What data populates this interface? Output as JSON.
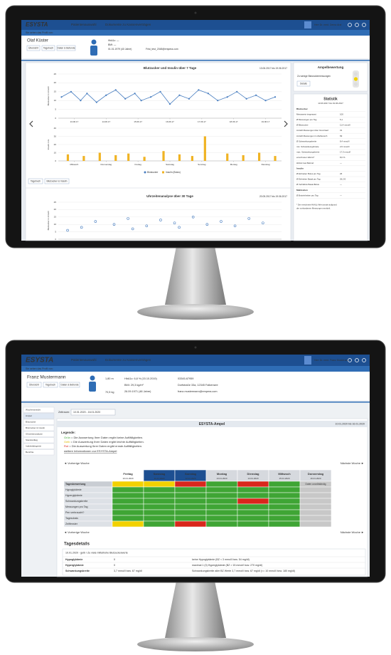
{
  "top_screen": {
    "header": {
      "logo": "ESYSTA",
      "nav": [
        "Patientenauswahl",
        "Dokumente zu Kassenverträgen"
      ],
      "user": "Herr Dr. med. Demo Arzt"
    },
    "profile_hint": "Sie sehen das Profil von:",
    "patient": {
      "name": "Olaf Küster",
      "tabs": [
        "Übersicht",
        "Tagebuch",
        "Daten & Befunde"
      ],
      "info": [
        "HbA1c: —",
        "BMI: —",
        "01.01.1979 (40 Jahre)",
        "Frist_test_2048@empera.com"
      ]
    },
    "buttons": [
      "Tagebuch",
      "Blutzucker & Insulin"
    ],
    "ampel": {
      "title": "Ampelbewertung",
      "text": "Zu wenige Blutzuckermessungen",
      "button": "Details"
    },
    "statistik": {
      "title": "Statistik",
      "period": "13.06.2017 bis 19.06.2017",
      "rows": [
        {
          "section": "Blutzucker"
        },
        {
          "label": "Messwerte insgesamt",
          "value": "100"
        },
        {
          "label": "Ø Messungen pro Tag",
          "value": "5,1"
        },
        {
          "label": "Ø Blutzucker",
          "value": "11,4 mmol/l"
        },
        {
          "label": "Anzahl Messungen über Grenzwert",
          "value": "31"
        },
        {
          "label": "Anzahl Messungen im Zielbereich",
          "value": "69"
        },
        {
          "label": "Ø Schwankungsbreite",
          "value": "8,4 mmol/l"
        },
        {
          "label": "min. Schwankungsbreite",
          "value": "2,5 mmol/l"
        },
        {
          "label": "max. Schwankungsbreite",
          "value": "17,3 mmol/l"
        },
        {
          "label": "errechneter HbA1c*",
          "value": "8,6 %"
        },
        {
          "label": "HbA1c laut Befund",
          "value": "—"
        },
        {
          "section": "Insulin"
        },
        {
          "label": "Ø Einheiten Bolus pro Tag",
          "value": "26"
        },
        {
          "label": "Ø Einheiten Basal pro Tag",
          "value": "26,2 E"
        },
        {
          "label": "Ø Verhältnis Basal-Bolus",
          "value": "—"
        },
        {
          "section": "Mahlzeiten"
        },
        {
          "label": "Ø Broteinheiten pro Tag",
          "value": "—"
        }
      ],
      "footnote": [
        "* Der errechnete HbA1c-Wert wurde aufgrund",
        "der vorhandenen Messungen ermittelt."
      ]
    }
  },
  "bottom_screen": {
    "header": {
      "logo": "ESYSTA",
      "nav": [
        "Patientenauswahl",
        "Dokumente zu Kassenverträgen"
      ],
      "user": "Herr Dr. med. Franz Musterarzt"
    },
    "profile_hint": "Sie sehen das Profil von:",
    "patient": {
      "name": "Franz Mustermann",
      "tabs": [
        "Übersicht",
        "Tagebuch",
        "Daten & Befunde"
      ],
      "info": [
        "1,80 m",
        "70,5 kg",
        "HbA1c: 6,8 % (15.10.2019)",
        "BMI: 29,3 kg/m²",
        "26.09.1971 (48 Jahre)",
        "03345-67959",
        "Dorfstraße 33a, 12345 Falkensee",
        "franz.mustermann@empera.com"
      ]
    },
    "sidebar": [
      "Wochenansicht",
      "Ampel",
      "Blutzucker",
      "Blutzucker & Insulin",
      "Uhrzeitenanalyse",
      "Standardtag",
      "Inaktivitätsgerät",
      "Berichte"
    ],
    "zeitraum": {
      "label": "Zeitraum:",
      "value": "10.01.2020 - 16.01.2020"
    },
    "ampel": {
      "title": "ESYSTA-Ampel",
      "period": "10.01.2020 bis 16.01.2020",
      "legend_title": "Legende:",
      "legend": [
        {
          "word": "Grün",
          "color": "#3fa535",
          "text": " = Die Auswertung Ihrer Daten ergibt keine Auffälligkeiten."
        },
        {
          "word": "Gelb",
          "color": "#e0b800",
          "text": " = Die Auswertung Ihrer Daten ergibt leichte Auffälligkeiten."
        },
        {
          "word": "Rot",
          "color": "#d9261c",
          "text": " = Die Auswertung Ihrer Daten ergibt ernste Auffälligkeiten."
        }
      ],
      "link": "weitere Informationen zur ESYSTA-Ampel",
      "prev": "◄ Vorherige Woche",
      "next": "Nächste Woche ►",
      "days": [
        {
          "name": "Freitag",
          "date": "10.01.2020"
        },
        {
          "name": "Samstag",
          "date": "11.01.2020"
        },
        {
          "name": "Sonntag",
          "date": "12.01.2020"
        },
        {
          "name": "Montag",
          "date": "13.01.2020"
        },
        {
          "name": "Dienstag",
          "date": "14.01.2020"
        },
        {
          "name": "Mittwoch",
          "date": "15.01.2020"
        },
        {
          "name": "Donnerstag",
          "date": "16.01.2020"
        }
      ],
      "rows": [
        "Tagesbewertung",
        "Hypoglykämie",
        "Hyperglykämie",
        "Schwankungsbreite",
        "Messungen pro Tag",
        "Pen verbraucht?",
        "Tagesdosis",
        "Zeitfenster"
      ],
      "cells": [
        [
          "#f2d100",
          "#f2d100",
          "#d9261c",
          "#3fa535",
          "#d9261c",
          "#3fa535",
          "#c8c8c8"
        ],
        [
          "#3fa535",
          "#3fa535",
          "#3fa535",
          "#3fa535",
          "#3fa535",
          "#3fa535",
          "#c8c8c8"
        ],
        [
          "#3fa535",
          "#3fa535",
          "#3fa535",
          "#3fa535",
          "#3fa535",
          "#3fa535",
          "#c8c8c8"
        ],
        [
          "#3fa535",
          "#3fa535",
          "#3fa535",
          "#3fa535",
          "#d9261c",
          "#3fa535",
          "#c8c8c8"
        ],
        [
          "#3fa535",
          "#3fa535",
          "#3fa535",
          "#3fa535",
          "#3fa535",
          "#3fa535",
          "#c8c8c8"
        ],
        [
          "#3fa535",
          "#3fa535",
          "#3fa535",
          "#3fa535",
          "#3fa535",
          "#3fa535",
          "#c8c8c8"
        ],
        [
          "#3fa535",
          "#3fa535",
          "#3fa535",
          "#3fa535",
          "#3fa535",
          "#3fa535",
          "#c8c8c8"
        ],
        [
          "#f2d100",
          "#3fa535",
          "#d9261c",
          "#3fa535",
          "#3fa535",
          "#3fa535",
          "#c8c8c8"
        ]
      ],
      "incomplete": "Daten unvollständig"
    },
    "details": {
      "title": "Tagesdetails",
      "heading": "10.01.2020 - gelb / Zu viele mittelhohe Blutzuckerwerte",
      "rows": [
        [
          "Hypoglykämie",
          "0",
          "keine Hypoglykämie (BZ < 3 mmol/l bzw. 54 mg/dl)"
        ],
        [
          "Hyperglykämie",
          "0",
          "maximal 1 (0) Hyperglykämie (BZ > 15 mmol/l bzw. 270 mg/dl)"
        ],
        [
          "Schwankungsbreite",
          "3,7 mmol/l bzw. 67 mg/dl",
          "Schwankungsbreite aller BZ Werte 3,7 mmol/l bzw. 67 mg/dl (<= 10 mmol/l bzw. 180 mg/dl)"
        ]
      ]
    }
  },
  "chart_data": [
    {
      "type": "line",
      "title": "Blutzucker und Insulin über 7 Tage",
      "subtitle": "13.06.2017 bis 19.06.2017",
      "ylabel": "Blutzucker in mmol/l",
      "x": [
        0.1,
        0.4,
        0.7,
        0.9,
        1.2,
        1.5,
        1.8,
        2.1,
        2.4,
        2.6,
        2.9,
        3.2,
        3.5,
        3.8,
        4.1,
        4.4,
        4.7,
        5.0,
        5.3,
        5.6,
        5.9,
        6.2,
        6.5,
        6.8
      ],
      "series": [
        {
          "name": "Blutzucker",
          "color": "#4a7fc1",
          "values": [
            12,
            15,
            10,
            14,
            9,
            13,
            16,
            11,
            14,
            10,
            12,
            15,
            8,
            13,
            11,
            16,
            14,
            10,
            12,
            15,
            11,
            13,
            10,
            12
          ]
        }
      ],
      "xlim": [
        0,
        7
      ],
      "xticks": [
        {
          "value": 0.5,
          "label": "13.06.17"
        },
        {
          "value": 1.5,
          "label": "14.06.17"
        },
        {
          "value": 2.5,
          "label": "15.06.17"
        },
        {
          "value": 3.5,
          "label": "16.06.17"
        },
        {
          "value": 4.5,
          "label": "17.06.17"
        },
        {
          "value": 5.5,
          "label": "18.06.17"
        },
        {
          "value": 6.5,
          "label": "19.06.17"
        }
      ],
      "ylim": [
        0,
        25
      ],
      "yticks": [
        0,
        5,
        10,
        15,
        20,
        25
      ]
    },
    {
      "type": "bar",
      "ylabel": "Insulin in E",
      "x": [
        0.3,
        0.8,
        1.3,
        1.8,
        2.2,
        2.7,
        3.3,
        3.8,
        4.2,
        4.6,
        5.3,
        5.8,
        6.3,
        6.8
      ],
      "series": [
        {
          "name": "Insulin (Bolus)",
          "color": "#f0b323",
          "values": [
            8,
            6,
            10,
            7,
            9,
            5,
            12,
            8,
            6,
            30,
            9,
            7,
            10,
            6
          ]
        }
      ],
      "xlim": [
        0,
        7
      ],
      "xticks": [
        {
          "value": 0.5,
          "label": "Mittwoch"
        },
        {
          "value": 1.5,
          "label": "Donnerstag"
        },
        {
          "value": 2.5,
          "label": "Freitag"
        },
        {
          "value": 3.5,
          "label": "Samstag"
        },
        {
          "value": 4.5,
          "label": "Sonntag"
        },
        {
          "value": 5.5,
          "label": "Montag"
        },
        {
          "value": 6.5,
          "label": "Dienstag"
        }
      ],
      "ylim": [
        0,
        40
      ],
      "yticks": [
        0,
        10,
        20,
        30,
        40
      ]
    },
    {
      "type": "scatter",
      "title": "Uhrzeitenanalyse über 30 Tage",
      "subtitle": "20.05.2017 bis 19.06.2017",
      "ylabel": "Blutzucker in mmol/l",
      "color": "#4a7fc1",
      "x": [
        1,
        2.5,
        4,
        6,
        7.5,
        8,
        9.5,
        11,
        12.5,
        13,
        14.5,
        16,
        17.5,
        19,
        20.5,
        22
      ],
      "values": [
        6,
        8,
        12,
        10,
        14,
        7,
        9,
        13,
        11,
        8,
        15,
        10,
        12,
        9,
        14,
        11
      ],
      "xlim": [
        0,
        24
      ],
      "ylim": [
        0,
        25
      ],
      "yticks": [
        0,
        5,
        10,
        15,
        20,
        25
      ]
    }
  ]
}
